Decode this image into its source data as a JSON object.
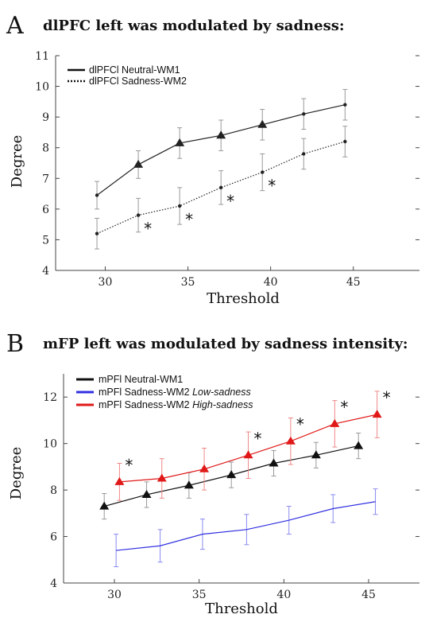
{
  "chart_data": [
    {
      "type": "line",
      "panel_letter": "A",
      "title": "dlPFC left was modulated by sadness:",
      "xlabel": "Threshold",
      "ylabel": "Degree",
      "xlim": [
        27,
        49
      ],
      "ylim": [
        4,
        11
      ],
      "x_ticks": [
        30,
        35,
        40,
        45
      ],
      "y_ticks": [
        4,
        5,
        6,
        7,
        8,
        9,
        10,
        11
      ],
      "legend_position": "top-left",
      "series": [
        {
          "name": "dlPFCl Neutral-WM1",
          "line_style": "solid",
          "color": "#222222",
          "x": [
            29.5,
            32.0,
            34.5,
            37.0,
            39.5,
            42.0,
            44.5
          ],
          "y": [
            6.45,
            7.45,
            8.15,
            8.4,
            8.75,
            9.1,
            9.4
          ],
          "error": [
            0.45,
            0.45,
            0.5,
            0.5,
            0.5,
            0.5,
            0.5
          ],
          "markers": [
            "dot",
            "triangle",
            "triangle",
            "triangle",
            "triangle",
            "dot",
            "dot"
          ]
        },
        {
          "name": "dlPFCl Sadness-WM2",
          "line_style": "dotted",
          "color": "#222222",
          "x": [
            29.5,
            32.0,
            34.5,
            37.0,
            39.5,
            42.0,
            44.5
          ],
          "y": [
            5.2,
            5.8,
            6.1,
            6.7,
            7.2,
            7.8,
            8.2
          ],
          "error": [
            0.5,
            0.55,
            0.6,
            0.55,
            0.6,
            0.5,
            0.5
          ],
          "markers": [
            "dot",
            "dot",
            "dot",
            "dot",
            "dot",
            "dot",
            "dot"
          ],
          "significant": [
            false,
            true,
            true,
            true,
            true,
            false,
            false
          ]
        }
      ],
      "significance_marker": "*"
    },
    {
      "type": "line",
      "panel_letter": "B",
      "title": "mFP left was modulated by sadness intensity:",
      "xlabel": "Threshold",
      "ylabel": "Degree",
      "xlim": [
        27,
        48
      ],
      "ylim": [
        4,
        13
      ],
      "x_ticks": [
        30,
        35,
        40,
        45
      ],
      "y_ticks": [
        4,
        6,
        8,
        10,
        12
      ],
      "legend_position": "top-left",
      "series": [
        {
          "name": "mPFl Neutral-WM1",
          "name_italic": "",
          "line_style": "solid",
          "color": "#111111",
          "x": [
            29.4,
            31.9,
            34.4,
            36.9,
            39.4,
            41.9,
            44.4
          ],
          "y": [
            7.3,
            7.8,
            8.2,
            8.65,
            9.15,
            9.5,
            9.9
          ],
          "error": [
            0.55,
            0.55,
            0.55,
            0.55,
            0.55,
            0.55,
            0.55
          ],
          "markers": [
            "triangle",
            "triangle",
            "triangle",
            "triangle",
            "triangle",
            "triangle",
            "triangle"
          ]
        },
        {
          "name": "mPFl Sadness-WM2 ",
          "name_italic": "Low-sadness",
          "line_style": "solid",
          "color": "#3030e0",
          "x": [
            30.1,
            32.7,
            35.2,
            37.8,
            40.3,
            42.9,
            45.4
          ],
          "y": [
            5.4,
            5.6,
            6.1,
            6.3,
            6.7,
            7.2,
            7.5
          ],
          "error": [
            0.7,
            0.7,
            0.65,
            0.65,
            0.6,
            0.6,
            0.55
          ],
          "markers": [
            "none",
            "none",
            "none",
            "none",
            "none",
            "none",
            "none"
          ]
        },
        {
          "name": "mPFl Sadness-WM2 ",
          "name_italic": "High-sadness",
          "line_style": "solid",
          "color": "#e01818",
          "x": [
            30.3,
            32.8,
            35.3,
            37.9,
            40.4,
            43.0,
            45.5
          ],
          "y": [
            8.35,
            8.5,
            8.9,
            9.5,
            10.1,
            10.85,
            11.25
          ],
          "error": [
            0.8,
            0.85,
            0.9,
            1.0,
            1.0,
            1.0,
            1.0
          ],
          "markers": [
            "triangle",
            "triangle",
            "triangle",
            "triangle",
            "triangle",
            "triangle",
            "triangle"
          ],
          "significant": [
            true,
            false,
            false,
            true,
            true,
            true,
            true
          ]
        }
      ],
      "significance_marker": "*"
    }
  ]
}
